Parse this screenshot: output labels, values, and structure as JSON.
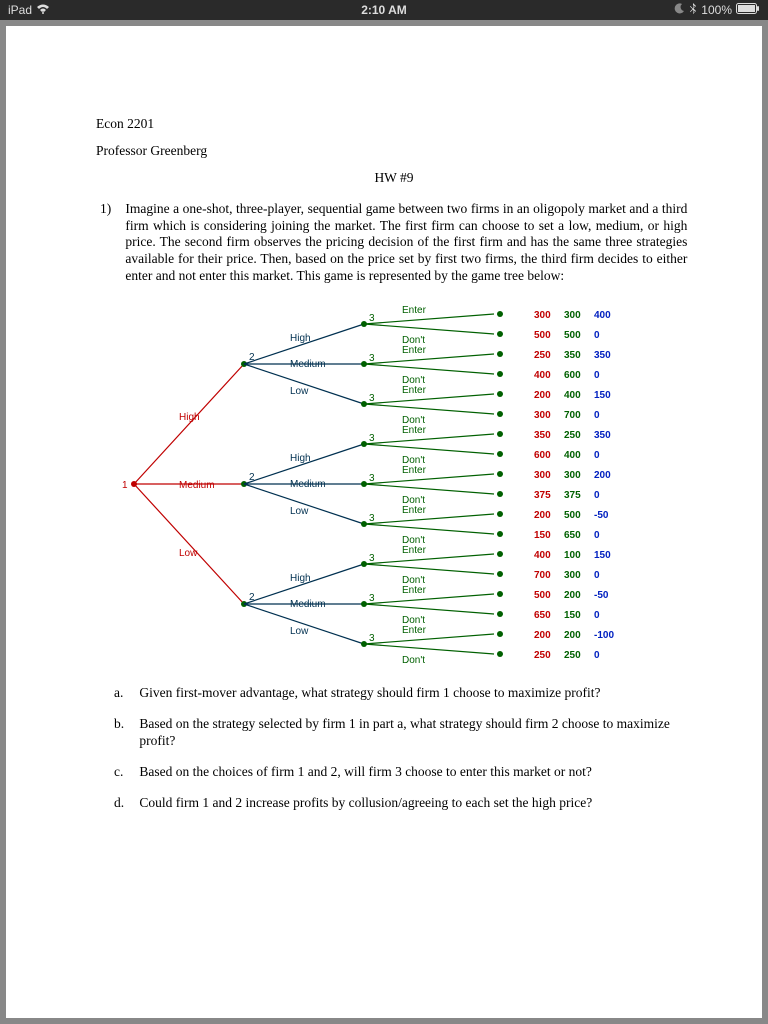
{
  "status": {
    "device": "iPad",
    "time": "2:10 AM",
    "battery_pct": "100%"
  },
  "header": {
    "course": "Econ 2201",
    "professor": "Professor Greenberg",
    "hw_title": "HW #9"
  },
  "question": {
    "number": "1)",
    "text": "Imagine a one-shot, three-player, sequential game between two firms in an oligopoly market and a third firm which is considering joining the market. The first firm can choose to set a low, medium, or high price. The second firm observes the pricing decision of the first firm and has the same three strategies available for their price. Then, based on the price set by first two firms, the third firm decides to either enter and not enter this market. This game is represented by the game tree below:"
  },
  "tree": {
    "colors": {
      "firm1": "#c00000",
      "firm2": "#003050",
      "firm3_edge": "#006000",
      "firm3_text": "#006000",
      "payoff_f3": "#0020c0",
      "node_fill": "#006000"
    },
    "root_label": "1",
    "firm1_labels": [
      "High",
      "Medium",
      "Low"
    ],
    "firm2_node_label": "2",
    "firm2_labels": [
      "High",
      "Medium",
      "Low"
    ],
    "firm3_node_label": "3",
    "firm3_labels": [
      "Enter",
      "Don't"
    ],
    "payoffs": [
      {
        "f1": "300",
        "f2": "300",
        "f3": "400"
      },
      {
        "f1": "500",
        "f2": "500",
        "f3": "0"
      },
      {
        "f1": "250",
        "f2": "350",
        "f3": "350"
      },
      {
        "f1": "400",
        "f2": "600",
        "f3": "0"
      },
      {
        "f1": "200",
        "f2": "400",
        "f3": "150"
      },
      {
        "f1": "300",
        "f2": "700",
        "f3": "0"
      },
      {
        "f1": "350",
        "f2": "250",
        "f3": "350"
      },
      {
        "f1": "600",
        "f2": "400",
        "f3": "0"
      },
      {
        "f1": "300",
        "f2": "300",
        "f3": "200"
      },
      {
        "f1": "375",
        "f2": "375",
        "f3": "0"
      },
      {
        "f1": "200",
        "f2": "500",
        "f3": "-50"
      },
      {
        "f1": "150",
        "f2": "650",
        "f3": "0"
      },
      {
        "f1": "400",
        "f2": "100",
        "f3": "150"
      },
      {
        "f1": "700",
        "f2": "300",
        "f3": "0"
      },
      {
        "f1": "500",
        "f2": "200",
        "f3": "-50"
      },
      {
        "f1": "650",
        "f2": "150",
        "f3": "0"
      },
      {
        "f1": "200",
        "f2": "200",
        "f3": "-100"
      },
      {
        "f1": "250",
        "f2": "250",
        "f3": "0"
      }
    ]
  },
  "subquestions": {
    "a": {
      "label": "a.",
      "text": "Given first-mover advantage, what strategy should firm 1 choose to maximize profit?"
    },
    "b": {
      "label": "b.",
      "text": "Based on the strategy selected by firm 1 in part a, what strategy should firm 2 choose to maximize profit?"
    },
    "c": {
      "label": "c.",
      "text": "Based on the choices of firm 1 and 2, will firm 3 choose to enter this market or not?"
    },
    "d": {
      "label": "d.",
      "text": "Could firm 1 and 2 increase profits by collusion/agreeing to each set the high price?"
    }
  }
}
